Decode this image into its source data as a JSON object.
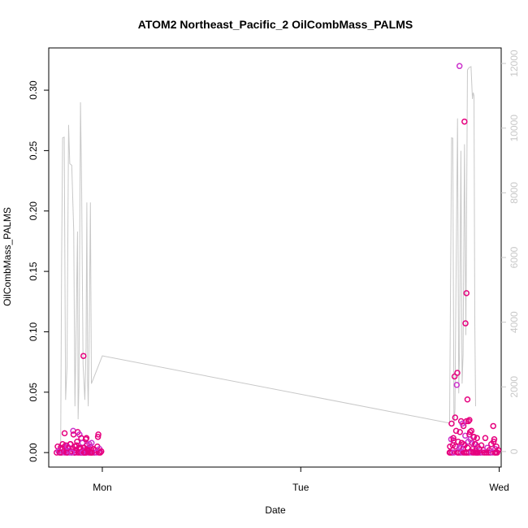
{
  "chart_data": {
    "type": "scatter",
    "title": "ATOM2 Northeast_Pacific_2 OilCombMass_PALMS",
    "xlabel": "Date",
    "ylabel": "OilCombMass_PALMS",
    "x_unit": "days from Sunday 00:00",
    "xlim": [
      0.73,
      3.01
    ],
    "ylim": [
      -0.012,
      0.335
    ],
    "y2lim": [
      -480,
      12480
    ],
    "x_ticks": [
      {
        "value": 1,
        "label": "Mon"
      },
      {
        "value": 2,
        "label": "Tue"
      },
      {
        "value": 3,
        "label": "Wed"
      }
    ],
    "y_ticks": [
      {
        "value": 0.0,
        "label": "0.00"
      },
      {
        "value": 0.05,
        "label": "0.05"
      },
      {
        "value": 0.1,
        "label": "0.10"
      },
      {
        "value": 0.15,
        "label": "0.15"
      },
      {
        "value": 0.2,
        "label": "0.20"
      },
      {
        "value": 0.25,
        "label": "0.25"
      },
      {
        "value": 0.3,
        "label": "0.30"
      }
    ],
    "y2_ticks": [
      {
        "value": 0,
        "label": "0"
      },
      {
        "value": 2000,
        "label": "2000"
      },
      {
        "value": 4000,
        "label": "4000"
      },
      {
        "value": 6000,
        "label": "6000"
      },
      {
        "value": 8000,
        "label": "8000"
      },
      {
        "value": 10000,
        "label": "10000"
      },
      {
        "value": 12000,
        "label": "12000"
      }
    ],
    "series": [
      {
        "axis": "right",
        "kind": "line",
        "color": "#c8c8c8",
        "points": [
          [
            0.79,
            0
          ],
          [
            0.795,
            6000
          ],
          [
            0.8,
            9700
          ],
          [
            0.808,
            9720
          ],
          [
            0.815,
            1600
          ],
          [
            0.822,
            2600
          ],
          [
            0.83,
            10100
          ],
          [
            0.836,
            8900
          ],
          [
            0.846,
            8850
          ],
          [
            0.856,
            6800
          ],
          [
            0.862,
            1400
          ],
          [
            0.868,
            3800
          ],
          [
            0.875,
            6800
          ],
          [
            0.878,
            1000
          ],
          [
            0.882,
            2000
          ],
          [
            0.89,
            10800
          ],
          [
            0.896,
            8000
          ],
          [
            0.903,
            2700
          ],
          [
            0.912,
            1600
          ],
          [
            0.918,
            3200
          ],
          [
            0.922,
            7700
          ],
          [
            0.926,
            2200
          ],
          [
            0.929,
            1400
          ],
          [
            0.933,
            3000
          ],
          [
            0.94,
            7700
          ],
          [
            0.945,
            2100
          ],
          [
            1.0,
            2960
          ],
          [
            2.75,
            880
          ],
          [
            2.76,
            9700
          ],
          [
            2.766,
            9690
          ],
          [
            2.772,
            800
          ],
          [
            2.777,
            1300
          ],
          [
            2.782,
            5000
          ],
          [
            2.79,
            10300
          ],
          [
            2.796,
            1800
          ],
          [
            2.8,
            3100
          ],
          [
            2.807,
            9300
          ],
          [
            2.813,
            2100
          ],
          [
            2.818,
            3000
          ],
          [
            2.825,
            9500
          ],
          [
            2.832,
            3600
          ],
          [
            2.84,
            11800
          ],
          [
            2.848,
            11870
          ],
          [
            2.858,
            11900
          ],
          [
            2.865,
            10900
          ],
          [
            2.869,
            11100
          ],
          [
            2.873,
            11000
          ],
          [
            2.877,
            4000
          ],
          [
            2.881,
            1400
          ]
        ]
      },
      {
        "axis": "left",
        "kind": "points",
        "color": "#e6007e",
        "color_alt": "#cc33cc",
        "points": [
          [
            0.79,
            0.0
          ],
          [
            0.79,
            0.004
          ],
          [
            0.795,
            0.0
          ],
          [
            0.8,
            0.003
          ],
          [
            0.805,
            0.001
          ],
          [
            0.81,
            0.0
          ],
          [
            0.815,
            0.006
          ],
          [
            0.82,
            0.002
          ],
          [
            0.825,
            0.0
          ],
          [
            0.83,
            0.004
          ],
          [
            0.835,
            0.0
          ],
          [
            0.838,
            0.007
          ],
          [
            0.842,
            0.001
          ],
          [
            0.846,
            0.0
          ],
          [
            0.85,
            0.003
          ],
          [
            0.853,
            0.018
          ],
          [
            0.855,
            0.015
          ],
          [
            0.86,
            0.0
          ],
          [
            0.862,
            0.005
          ],
          [
            0.867,
            0.002
          ],
          [
            0.87,
            0.0
          ],
          [
            0.873,
            0.009
          ],
          [
            0.876,
            0.017
          ],
          [
            0.879,
            0.0
          ],
          [
            0.882,
            0.004
          ],
          [
            0.885,
            0.015
          ],
          [
            0.888,
            0.0
          ],
          [
            0.891,
            0.003
          ],
          [
            0.894,
            0.012
          ],
          [
            0.897,
            0.0
          ],
          [
            0.9,
            0.008
          ],
          [
            0.902,
            0.001
          ],
          [
            0.905,
            0.0
          ],
          [
            0.908,
            0.004
          ],
          [
            0.911,
            0.0
          ],
          [
            0.914,
            0.002
          ],
          [
            0.917,
            0.011
          ],
          [
            0.92,
            0.0
          ],
          [
            0.923,
            0.006
          ],
          [
            0.926,
            0.001
          ],
          [
            0.93,
            0.0
          ],
          [
            0.933,
            0.003
          ],
          [
            0.937,
            0.0
          ],
          [
            0.94,
            0.005
          ],
          [
            0.943,
            0.0
          ],
          [
            0.946,
            0.008
          ],
          [
            0.95,
            0.0
          ],
          [
            0.955,
            0.003
          ],
          [
            0.96,
            0.0
          ],
          [
            0.965,
            0.002
          ],
          [
            0.97,
            0.0
          ],
          [
            0.975,
            0.005
          ],
          [
            0.978,
            0.013
          ],
          [
            0.98,
            0.015
          ],
          [
            0.983,
            0.0
          ],
          [
            0.986,
            0.003
          ],
          [
            0.99,
            0.0
          ],
          [
            0.995,
            0.001
          ],
          [
            0.77,
            0.0
          ],
          [
            0.775,
            0.005
          ],
          [
            0.78,
            0.001
          ],
          [
            0.785,
            0.0
          ],
          [
            0.8,
            0.007
          ],
          [
            0.81,
            0.005
          ],
          [
            0.82,
            0.0
          ],
          [
            0.825,
            0.005
          ],
          [
            0.895,
            0.0
          ],
          [
            0.905,
            0.0
          ],
          [
            0.915,
            0.0
          ],
          [
            0.925,
            0.003
          ],
          [
            0.935,
            0.007
          ],
          [
            0.945,
            0.0
          ],
          [
            0.86,
            0.0
          ],
          [
            0.87,
            0.006
          ],
          [
            0.89,
            0.004
          ],
          [
            0.9,
            0.0
          ],
          [
            0.92,
            0.012
          ],
          [
            0.905,
            0.08
          ],
          [
            0.91,
            0.0
          ],
          [
            0.84,
            0.007
          ],
          [
            0.845,
            0.0
          ],
          [
            0.81,
            0.016
          ],
          [
            2.75,
            0.0
          ],
          [
            2.752,
            0.005
          ],
          [
            2.755,
            0.0
          ],
          [
            2.758,
            0.011
          ],
          [
            2.76,
            0.024
          ],
          [
            2.763,
            0.0
          ],
          [
            2.766,
            0.006
          ],
          [
            2.769,
            0.012
          ],
          [
            2.772,
            0.0
          ],
          [
            2.775,
            0.063
          ],
          [
            2.778,
            0.029
          ],
          [
            2.78,
            0.005
          ],
          [
            2.783,
            0.018
          ],
          [
            2.786,
            0.056
          ],
          [
            2.789,
            0.066
          ],
          [
            2.79,
            0.0
          ],
          [
            2.793,
            0.009
          ],
          [
            2.796,
            0.0
          ],
          [
            2.799,
            0.004
          ],
          [
            2.802,
            0.017
          ],
          [
            2.805,
            0.0
          ],
          [
            2.808,
            0.026
          ],
          [
            2.811,
            0.008
          ],
          [
            2.814,
            0.0
          ],
          [
            2.817,
            0.003
          ],
          [
            2.82,
            0.022
          ],
          [
            2.823,
            0.0
          ],
          [
            2.826,
            0.006
          ],
          [
            2.829,
            0.014
          ],
          [
            2.832,
            0.0
          ],
          [
            2.835,
            0.026
          ],
          [
            2.838,
            0.0
          ],
          [
            2.841,
            0.004
          ],
          [
            2.844,
            0.009
          ],
          [
            2.847,
            0.0
          ],
          [
            2.85,
            0.015
          ],
          [
            2.853,
            0.017
          ],
          [
            2.856,
            0.001
          ],
          [
            2.86,
            0.0
          ],
          [
            2.863,
            0.008
          ],
          [
            2.866,
            0.003
          ],
          [
            2.87,
            0.0
          ],
          [
            2.873,
            0.013
          ],
          [
            2.876,
            0.007
          ],
          [
            2.879,
            0.0
          ],
          [
            2.882,
            0.002
          ],
          [
            2.885,
            0.0
          ],
          [
            2.888,
            0.012
          ],
          [
            2.891,
            0.005
          ],
          [
            2.895,
            0.0
          ],
          [
            2.9,
            0.003
          ],
          [
            2.905,
            0.0
          ],
          [
            2.91,
            0.006
          ],
          [
            2.915,
            0.0
          ],
          [
            2.92,
            0.002
          ],
          [
            2.925,
            0.0
          ],
          [
            2.93,
            0.012
          ],
          [
            2.935,
            0.0
          ],
          [
            2.94,
            0.004
          ],
          [
            2.945,
            0.0
          ],
          [
            2.95,
            0.002
          ],
          [
            2.955,
            0.0
          ],
          [
            2.96,
            0.007
          ],
          [
            2.965,
            0.0
          ],
          [
            2.97,
            0.022
          ],
          [
            2.972,
            0.009
          ],
          [
            2.975,
            0.011
          ],
          [
            2.978,
            0.0
          ],
          [
            2.98,
            0.003
          ],
          [
            2.983,
            0.0
          ],
          [
            2.986,
            0.005
          ],
          [
            2.99,
            0.0
          ],
          [
            2.995,
            0.002
          ],
          [
            2.8,
            0.32
          ],
          [
            2.825,
            0.274
          ],
          [
            2.835,
            0.132
          ],
          [
            2.83,
            0.107
          ],
          [
            2.84,
            0.044
          ],
          [
            2.815,
            0.024
          ],
          [
            2.845,
            0.026
          ],
          [
            2.85,
            0.027
          ],
          [
            2.86,
            0.018
          ],
          [
            2.82,
            0.007
          ],
          [
            2.855,
            0.011
          ],
          [
            2.87,
            0.013
          ],
          [
            2.88,
            0.007
          ],
          [
            2.89,
            0.0
          ],
          [
            2.77,
            0.01
          ],
          [
            2.808,
            0.004
          ]
        ]
      }
    ]
  }
}
